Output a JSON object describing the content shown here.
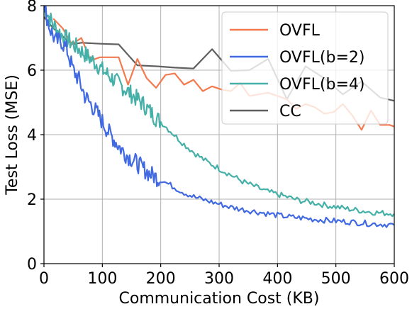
{
  "chart_data": {
    "type": "line",
    "title": "",
    "xlabel": "Communication Cost (KB)",
    "ylabel": "Test Loss (MSE)",
    "xlim": [
      0,
      600
    ],
    "ylim": [
      0,
      8
    ],
    "xticks": [
      0,
      100,
      200,
      300,
      400,
      500,
      600
    ],
    "yticks": [
      0,
      2,
      4,
      6,
      8
    ],
    "grid": true,
    "legend_position": "top-right",
    "series": [
      {
        "name": "OVFL",
        "color": "#f4794e",
        "x": [
          16,
          32,
          48,
          64,
          80,
          96,
          112,
          128,
          144,
          160,
          176,
          192,
          208,
          224,
          240,
          256,
          272,
          288,
          304,
          320,
          336,
          352,
          368,
          384,
          400,
          416,
          432,
          448,
          464,
          480,
          496,
          512,
          528,
          544,
          560,
          576,
          592,
          600
        ],
        "y": [
          7.6,
          7.3,
          6.8,
          7.0,
          6.3,
          6.4,
          6.4,
          6.4,
          5.55,
          6.35,
          5.75,
          5.45,
          5.85,
          5.9,
          5.55,
          5.7,
          5.35,
          5.5,
          5.4,
          5.35,
          5.6,
          5.2,
          5.25,
          5.3,
          5.2,
          5.1,
          4.8,
          4.95,
          4.85,
          4.65,
          4.7,
          4.95,
          4.6,
          4.15,
          4.75,
          4.3,
          4.3,
          4.25
        ]
      },
      {
        "name": "OVFL(b=2)",
        "color": "#4169e1",
        "x": [
          0,
          10,
          20,
          30,
          40,
          50,
          60,
          70,
          80,
          90,
          100,
          110,
          120,
          130,
          140,
          150,
          160,
          170,
          180,
          190,
          200,
          220,
          240,
          260,
          280,
          300,
          320,
          340,
          360,
          380,
          400,
          420,
          440,
          460,
          480,
          500,
          520,
          540,
          560,
          580,
          600
        ],
        "y": [
          8.0,
          7.3,
          6.9,
          6.9,
          6.6,
          6.0,
          5.7,
          5.2,
          4.95,
          4.7,
          4.4,
          4.1,
          3.85,
          3.6,
          3.4,
          3.25,
          3.1,
          2.95,
          2.8,
          2.7,
          2.6,
          2.4,
          2.2,
          2.05,
          1.95,
          1.85,
          1.75,
          1.68,
          1.62,
          1.56,
          1.5,
          1.45,
          1.42,
          1.38,
          1.35,
          1.32,
          1.3,
          1.27,
          1.24,
          1.22,
          1.2
        ]
      },
      {
        "name": "OVFL(b=4)",
        "color": "#45b0a8",
        "x": [
          0,
          10,
          20,
          30,
          40,
          50,
          60,
          70,
          80,
          90,
          100,
          110,
          120,
          130,
          140,
          150,
          160,
          170,
          180,
          190,
          200,
          220,
          240,
          260,
          280,
          300,
          320,
          340,
          360,
          380,
          400,
          420,
          440,
          460,
          480,
          500,
          520,
          540,
          560,
          580,
          600
        ],
        "y": [
          8.0,
          7.6,
          7.3,
          7.1,
          6.95,
          6.8,
          6.65,
          6.5,
          6.35,
          6.2,
          6.0,
          5.85,
          5.7,
          5.55,
          5.4,
          5.25,
          5.1,
          4.95,
          4.75,
          4.55,
          4.4,
          4.05,
          3.7,
          3.4,
          3.15,
          2.95,
          2.75,
          2.55,
          2.4,
          2.25,
          2.15,
          2.05,
          1.95,
          1.9,
          1.82,
          1.76,
          1.7,
          1.65,
          1.6,
          1.57,
          1.55
        ]
      },
      {
        "name": "CC",
        "color": "#606060",
        "x": [
          0,
          16,
          32,
          48,
          64,
          96,
          128,
          160,
          192,
          224,
          256,
          288,
          320,
          352,
          384,
          416,
          448,
          480,
          512,
          544,
          576,
          600
        ],
        "y": [
          7.65,
          7.3,
          7.05,
          6.8,
          6.85,
          6.82,
          6.8,
          6.15,
          6.12,
          6.08,
          6.05,
          6.65,
          5.98,
          6.0,
          6.35,
          5.1,
          6.12,
          5.75,
          5.25,
          5.65,
          5.15,
          5.05
        ]
      }
    ]
  }
}
